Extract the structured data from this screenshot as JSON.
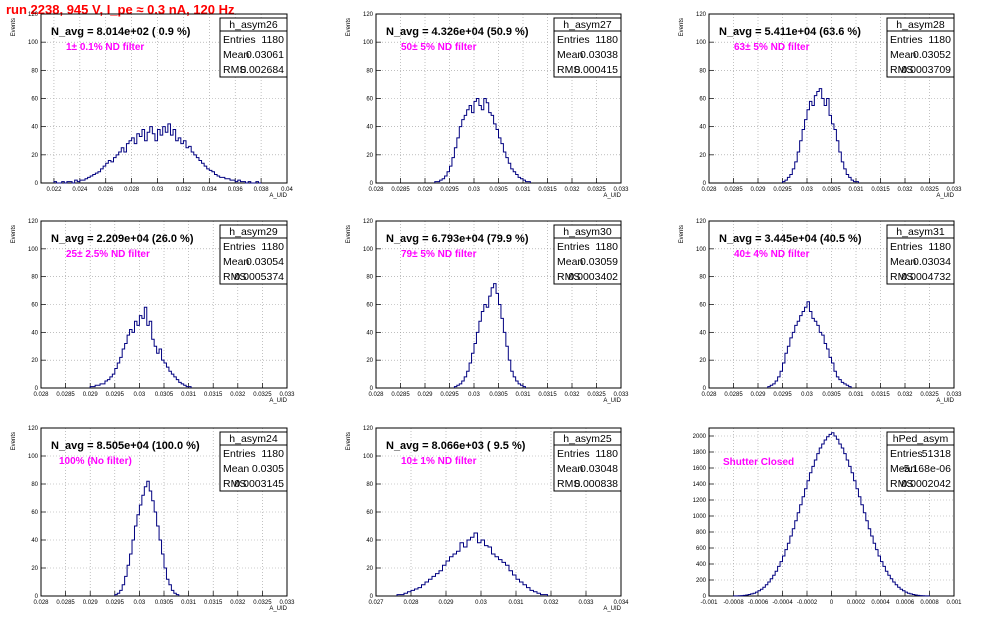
{
  "header": {
    "title": "run 2238,   945 V, I_pe ≈ 0.3 nA, 120 Hz"
  },
  "colors": {
    "histogram": "#000080",
    "note": "#ff00ff",
    "title": "#ff0000",
    "grid": "#999999"
  },
  "chart_data": [
    {
      "type": "bar",
      "name": "h_asym26",
      "title": "N_avg = 8.014e+02 ( 0.9 %)",
      "note": "1± 0.1% ND filter",
      "stats": {
        "entries_label": "Entries",
        "entries": "1180",
        "mean_label": "Mean",
        "mean": "0.03061",
        "rms_label": "RMS",
        "rms": "0.002684"
      },
      "xlabel": "A_UID",
      "ylabel": "Events",
      "xlim": [
        0.021,
        0.04
      ],
      "ylim": [
        0,
        120
      ],
      "xticks": [
        "0.022",
        "0.024",
        "0.026",
        "0.028",
        "0.03",
        "0.032",
        "0.034",
        "0.036",
        "0.038",
        "0.04"
      ],
      "yticks": [
        "0",
        "20",
        "40",
        "60",
        "80",
        "100",
        "120"
      ],
      "bin_start": 0.022,
      "bin_width": 0.0002,
      "values": [
        1,
        0,
        0,
        1,
        0,
        1,
        1,
        0,
        2,
        1,
        2,
        2,
        3,
        4,
        5,
        6,
        7,
        8,
        10,
        12,
        14,
        16,
        15,
        18,
        20,
        22,
        25,
        22,
        28,
        30,
        32,
        28,
        35,
        33,
        38,
        30,
        36,
        40,
        35,
        30,
        38,
        34,
        40,
        36,
        42,
        34,
        38,
        30,
        32,
        28,
        30,
        25,
        26,
        22,
        20,
        18,
        16,
        14,
        12,
        10,
        9,
        8,
        6,
        5,
        4,
        4,
        3,
        3,
        2,
        2,
        1,
        2,
        1,
        1,
        0,
        1,
        0,
        0,
        1,
        0
      ]
    },
    {
      "type": "bar",
      "name": "h_asym27",
      "title": "N_avg = 4.326e+04 (50.9 %)",
      "note": "50± 5% ND filter",
      "stats": {
        "entries_label": "Entries",
        "entries": "1180",
        "mean_label": "Mean",
        "mean": "0.03038",
        "rms_label": "RMS",
        "rms": "0.000415"
      },
      "xlabel": "A_UID",
      "ylabel": "Events",
      "xlim": [
        0.028,
        0.033
      ],
      "ylim": [
        0,
        120
      ],
      "xticks": [
        "0.028",
        "0.0285",
        "0.029",
        "0.0295",
        "0.03",
        "0.0305",
        "0.031",
        "0.0315",
        "0.032",
        "0.0325",
        "0.033"
      ],
      "yticks": [
        "0",
        "20",
        "40",
        "60",
        "80",
        "100",
        "120"
      ],
      "bin_start": 0.0292,
      "bin_width": 5e-05,
      "values": [
        1,
        1,
        2,
        3,
        5,
        8,
        12,
        18,
        25,
        32,
        40,
        45,
        48,
        52,
        55,
        50,
        58,
        60,
        55,
        52,
        60,
        57,
        50,
        48,
        42,
        38,
        32,
        28,
        22,
        18,
        14,
        10,
        8,
        6,
        4,
        3,
        2,
        1,
        1
      ]
    },
    {
      "type": "bar",
      "name": "h_asym28",
      "title": "N_avg = 5.411e+04 (63.6 %)",
      "note": "63± 5% ND filter",
      "stats": {
        "entries_label": "Entries",
        "entries": "1180",
        "mean_label": "Mean",
        "mean": "0.03052",
        "rms_label": "RMS",
        "rms": "0.0003709"
      },
      "xlabel": "A_UID",
      "ylabel": "Events",
      "xlim": [
        0.028,
        0.033
      ],
      "ylim": [
        0,
        120
      ],
      "xticks": [
        "0.028",
        "0.0285",
        "0.029",
        "0.0295",
        "0.03",
        "0.0305",
        "0.031",
        "0.0315",
        "0.032",
        "0.0325",
        "0.033"
      ],
      "yticks": [
        "0",
        "20",
        "40",
        "60",
        "80",
        "100",
        "120"
      ],
      "bin_start": 0.0295,
      "bin_width": 5e-05,
      "values": [
        1,
        2,
        4,
        6,
        10,
        15,
        22,
        30,
        38,
        45,
        52,
        58,
        55,
        62,
        65,
        67,
        60,
        55,
        60,
        48,
        42,
        38,
        30,
        22,
        15,
        10,
        6,
        4,
        2,
        1,
        1
      ]
    },
    {
      "type": "bar",
      "name": "h_asym29",
      "title": "N_avg = 2.209e+04 (26.0 %)",
      "note": "25± 2.5% ND filter",
      "stats": {
        "entries_label": "Entries",
        "entries": "1180",
        "mean_label": "Mean",
        "mean": "0.03054",
        "rms_label": "RMS",
        "rms": "0.0005374"
      },
      "xlabel": "A_UID",
      "ylabel": "Events",
      "xlim": [
        0.028,
        0.033
      ],
      "ylim": [
        0,
        120
      ],
      "xticks": [
        "0.028",
        "0.0285",
        "0.029",
        "0.0295",
        "0.03",
        "0.0305",
        "0.031",
        "0.0315",
        "0.032",
        "0.0325",
        "0.033"
      ],
      "yticks": [
        "0",
        "20",
        "40",
        "60",
        "80",
        "100",
        "120"
      ],
      "bin_start": 0.029,
      "bin_width": 5e-05,
      "values": [
        1,
        1,
        2,
        2,
        3,
        3,
        5,
        6,
        8,
        10,
        14,
        18,
        22,
        28,
        32,
        38,
        42,
        40,
        48,
        45,
        52,
        50,
        58,
        45,
        48,
        35,
        30,
        25,
        28,
        20,
        18,
        15,
        12,
        10,
        8,
        6,
        4,
        3,
        2,
        1,
        1
      ]
    },
    {
      "type": "bar",
      "name": "h_asym30",
      "title": "N_avg = 6.793e+04 (79.9 %)",
      "note": "79± 5% ND filter",
      "stats": {
        "entries_label": "Entries",
        "entries": "1180",
        "mean_label": "Mean",
        "mean": "0.03059",
        "rms_label": "RMS",
        "rms": "0.0003402"
      },
      "xlabel": "A_UID",
      "ylabel": "Events",
      "xlim": [
        0.028,
        0.033
      ],
      "ylim": [
        0,
        120
      ],
      "xticks": [
        "0.028",
        "0.0285",
        "0.029",
        "0.0295",
        "0.03",
        "0.0305",
        "0.031",
        "0.0315",
        "0.032",
        "0.0325",
        "0.033"
      ],
      "yticks": [
        "0",
        "20",
        "40",
        "60",
        "80",
        "100",
        "120"
      ],
      "bin_start": 0.0296,
      "bin_width": 5e-05,
      "values": [
        1,
        2,
        3,
        5,
        8,
        12,
        18,
        25,
        32,
        40,
        48,
        55,
        60,
        58,
        66,
        72,
        75,
        68,
        60,
        50,
        40,
        30,
        20,
        12,
        8,
        5,
        3,
        2,
        1
      ]
    },
    {
      "type": "bar",
      "name": "h_asym31",
      "title": "N_avg = 3.445e+04 (40.5 %)",
      "note": "40± 4% ND filter",
      "stats": {
        "entries_label": "Entries",
        "entries": "1180",
        "mean_label": "Mean",
        "mean": "0.03034",
        "rms_label": "RMS",
        "rms": "0.0004732"
      },
      "xlabel": "A_UID",
      "ylabel": "Events",
      "xlim": [
        0.028,
        0.033
      ],
      "ylim": [
        0,
        120
      ],
      "xticks": [
        "0.028",
        "0.0285",
        "0.029",
        "0.0295",
        "0.03",
        "0.0305",
        "0.031",
        "0.0315",
        "0.032",
        "0.0325",
        "0.033"
      ],
      "yticks": [
        "0",
        "20",
        "40",
        "60",
        "80",
        "100",
        "120"
      ],
      "bin_start": 0.0292,
      "bin_width": 5e-05,
      "values": [
        1,
        2,
        3,
        5,
        8,
        12,
        18,
        25,
        30,
        36,
        40,
        45,
        48,
        52,
        55,
        58,
        62,
        55,
        50,
        48,
        45,
        40,
        38,
        32,
        28,
        22,
        18,
        12,
        8,
        6,
        4,
        3,
        2,
        1
      ]
    },
    {
      "type": "bar",
      "name": "h_asym24",
      "title": "N_avg = 8.505e+04 (100.0 %)",
      "note": "100% (No filter)",
      "stats": {
        "entries_label": "Entries",
        "entries": "1180",
        "mean_label": "Mean",
        "mean": "0.0305",
        "rms_label": "RMS",
        "rms": "0.0003145"
      },
      "xlabel": "A_UID",
      "ylabel": "Events",
      "xlim": [
        0.028,
        0.033
      ],
      "ylim": [
        0,
        120
      ],
      "xticks": [
        "0.028",
        "0.0285",
        "0.029",
        "0.0295",
        "0.03",
        "0.0305",
        "0.031",
        "0.0315",
        "0.032",
        "0.0325",
        "0.033"
      ],
      "yticks": [
        "0",
        "20",
        "40",
        "60",
        "80",
        "100",
        "120"
      ],
      "bin_start": 0.0295,
      "bin_width": 5e-05,
      "values": [
        1,
        2,
        4,
        8,
        14,
        22,
        30,
        40,
        50,
        58,
        65,
        72,
        78,
        82,
        75,
        68,
        60,
        50,
        40,
        30,
        20,
        12,
        8,
        4,
        2,
        1
      ]
    },
    {
      "type": "bar",
      "name": "h_asym25",
      "title": "N_avg = 8.066e+03 ( 9.5 %)",
      "note": "10± 1% ND filter",
      "stats": {
        "entries_label": "Entries",
        "entries": "1180",
        "mean_label": "Mean",
        "mean": "0.03048",
        "rms_label": "RMS",
        "rms": "0.000838"
      },
      "xlabel": "A_UID",
      "ylabel": "Events",
      "xlim": [
        0.027,
        0.034
      ],
      "ylim": [
        0,
        120
      ],
      "xticks": [
        "0.027",
        "0.028",
        "0.029",
        "0.03",
        "0.031",
        "0.032",
        "0.033",
        "0.034"
      ],
      "yticks": [
        "0",
        "20",
        "40",
        "60",
        "80",
        "100",
        "120"
      ],
      "bin_start": 0.0276,
      "bin_width": 0.0001,
      "values": [
        1,
        1,
        2,
        3,
        4,
        5,
        6,
        8,
        10,
        12,
        14,
        16,
        18,
        22,
        25,
        28,
        30,
        32,
        38,
        35,
        40,
        42,
        45,
        38,
        40,
        36,
        35,
        30,
        28,
        26,
        24,
        22,
        18,
        15,
        12,
        10,
        8,
        6,
        4,
        3,
        2,
        1,
        1
      ]
    },
    {
      "type": "bar",
      "name": "hPed_asym",
      "title": "",
      "note": "Shutter Closed",
      "stats": {
        "entries_label": "Entries",
        "entries": "51318",
        "mean_label": "Mean",
        "mean": "-5.168e-06",
        "rms_label": "RMS",
        "rms": "0.0002042"
      },
      "xlabel": "",
      "ylabel": "",
      "xlim": [
        -0.001,
        0.001
      ],
      "ylim": [
        0,
        2100
      ],
      "xticks": [
        "-0.001",
        "-0.0008",
        "-0.0006",
        "-0.0004",
        "-0.0002",
        "0",
        "0.0002",
        "0.0004",
        "0.0006",
        "0.0008",
        "0.001"
      ],
      "yticks": [
        "0",
        "200",
        "400",
        "600",
        "800",
        "1000",
        "1200",
        "1400",
        "1600",
        "1800",
        "2000"
      ],
      "bin_start": -0.0008,
      "bin_width": 2e-05,
      "values": [
        1,
        2,
        3,
        5,
        8,
        12,
        18,
        26,
        35,
        48,
        65,
        85,
        110,
        140,
        175,
        215,
        260,
        310,
        370,
        430,
        500,
        580,
        660,
        750,
        840,
        940,
        1040,
        1140,
        1240,
        1340,
        1440,
        1540,
        1620,
        1700,
        1780,
        1850,
        1900,
        1950,
        1990,
        2020,
        2040,
        2000,
        1960,
        1900,
        1850,
        1780,
        1700,
        1620,
        1540,
        1440,
        1340,
        1240,
        1140,
        1040,
        940,
        840,
        750,
        660,
        580,
        500,
        430,
        370,
        310,
        260,
        215,
        175,
        140,
        110,
        85,
        65,
        48,
        35,
        26,
        18,
        12,
        8,
        5,
        3,
        2,
        1
      ]
    }
  ]
}
